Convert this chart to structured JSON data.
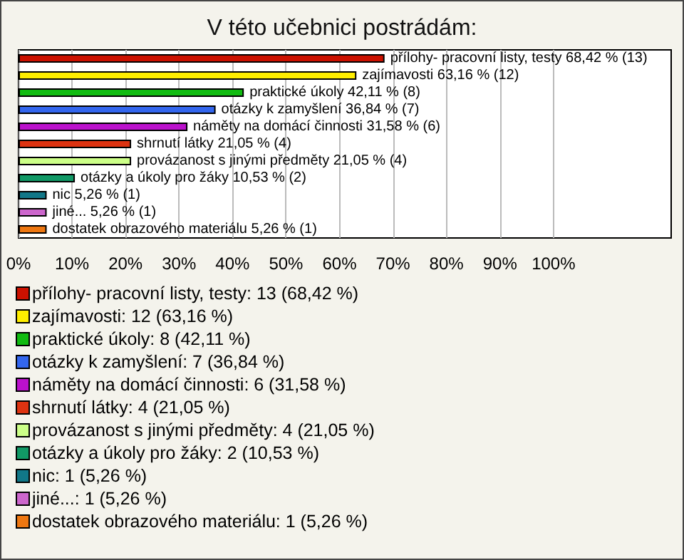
{
  "chart_data": {
    "type": "bar",
    "orientation": "horizontal",
    "stacked": true,
    "title": "V této učebnici postrádám:",
    "categories": [
      null,
      null,
      null,
      null,
      null,
      null,
      null,
      null,
      null,
      null,
      null
    ],
    "series": [
      {
        "name": "přílohy- pracovní listy, testy: 13 (68,42 %)",
        "color": "#cc1100",
        "values": [
          68.42,
          null,
          null,
          null,
          null,
          null,
          null,
          null,
          null,
          null,
          null
        ],
        "value_labels": [
          "přílohy- pracovní listy, testy 68,42 % (13)",
          null,
          null,
          null,
          null,
          null,
          null,
          null,
          null,
          null,
          null
        ]
      },
      {
        "name": "zajímavosti: 12 (63,16 %)",
        "color": "#ffee00",
        "values": [
          null,
          63.16,
          null,
          null,
          null,
          null,
          null,
          null,
          null,
          null,
          null
        ],
        "value_labels": [
          null,
          "zajímavosti 63,16 % (12)",
          null,
          null,
          null,
          null,
          null,
          null,
          null,
          null,
          null
        ]
      },
      {
        "name": "praktické úkoly: 8 (42,11 %)",
        "color": "#11bb11",
        "values": [
          null,
          null,
          42.11,
          null,
          null,
          null,
          null,
          null,
          null,
          null,
          null
        ],
        "value_labels": [
          null,
          null,
          "praktické úkoly 42,11 % (8)",
          null,
          null,
          null,
          null,
          null,
          null,
          null,
          null
        ]
      },
      {
        "name": "otázky k zamyšlení: 7 (36,84 %)",
        "color": "#3366ee",
        "values": [
          null,
          null,
          null,
          36.84,
          null,
          null,
          null,
          null,
          null,
          null,
          null
        ],
        "value_labels": [
          null,
          null,
          null,
          "otázky k zamyšlení 36,84 % (7)",
          null,
          null,
          null,
          null,
          null,
          null,
          null
        ]
      },
      {
        "name": "náměty na domácí činnosti: 6 (31,58 %)",
        "color": "#bb11cc",
        "values": [
          null,
          null,
          null,
          null,
          31.58,
          null,
          null,
          null,
          null,
          null,
          null
        ],
        "value_labels": [
          null,
          null,
          null,
          null,
          "náměty na domácí činnosti 31,58 % (6)",
          null,
          null,
          null,
          null,
          null,
          null
        ]
      },
      {
        "name": "shrnutí látky: 4 (21,05 %)",
        "color": "#dd3311",
        "values": [
          null,
          null,
          null,
          null,
          null,
          21.05,
          null,
          null,
          null,
          null,
          null
        ],
        "value_labels": [
          null,
          null,
          null,
          null,
          null,
          "shrnutí látky 21,05 % (4)",
          null,
          null,
          null,
          null,
          null
        ]
      },
      {
        "name": "provázanost s jinými předměty: 4 (21,05 %)",
        "color": "#ccff88",
        "values": [
          null,
          null,
          null,
          null,
          null,
          null,
          21.05,
          null,
          null,
          null,
          null
        ],
        "value_labels": [
          null,
          null,
          null,
          null,
          null,
          null,
          "provázanost s jinými předměty 21,05 % (4)",
          null,
          null,
          null,
          null
        ]
      },
      {
        "name": "otázky a úkoly pro žáky: 2 (10,53 %)",
        "color": "#119966",
        "values": [
          null,
          null,
          null,
          null,
          null,
          null,
          null,
          10.53,
          null,
          null,
          null
        ],
        "value_labels": [
          null,
          null,
          null,
          null,
          null,
          null,
          null,
          "otázky a úkoly pro žáky 10,53 % (2)",
          null,
          null,
          null
        ]
      },
      {
        "name": "nic: 1 (5,26 %)",
        "color": "#117788",
        "values": [
          null,
          null,
          null,
          null,
          null,
          null,
          null,
          null,
          5.26,
          null,
          null
        ],
        "value_labels": [
          null,
          null,
          null,
          null,
          null,
          null,
          null,
          null,
          "nic 5,26 % (1)",
          null,
          null
        ]
      },
      {
        "name": "jiné...: 1 (5,26 %)",
        "color": "#cc66cc",
        "values": [
          null,
          null,
          null,
          null,
          null,
          null,
          null,
          null,
          null,
          5.26,
          null
        ],
        "value_labels": [
          null,
          null,
          null,
          null,
          null,
          null,
          null,
          null,
          null,
          "jiné... 5,26 % (1)",
          null
        ]
      },
      {
        "name": "dostatek obrazového materiálu: 1 (5,26 %)",
        "color": "#ee7711",
        "values": [
          null,
          null,
          null,
          null,
          null,
          null,
          null,
          null,
          null,
          null,
          5.26
        ],
        "value_labels": [
          null,
          null,
          null,
          null,
          null,
          null,
          null,
          null,
          null,
          null,
          "dostatek obrazového materiálu 5,26 % (1)"
        ]
      }
    ],
    "xlim": [
      0,
      122
    ],
    "xticks": [
      {
        "value": 0,
        "label": "0%"
      },
      {
        "value": 10,
        "label": "10%"
      },
      {
        "value": 20,
        "label": "20%"
      },
      {
        "value": 30,
        "label": "30%"
      },
      {
        "value": 40,
        "label": "40%"
      },
      {
        "value": 50,
        "label": "50%"
      },
      {
        "value": 60,
        "label": "60%"
      },
      {
        "value": 70,
        "label": "70%"
      },
      {
        "value": 80,
        "label": "80%"
      },
      {
        "value": 90,
        "label": "90%"
      },
      {
        "value": 100,
        "label": "100%"
      }
    ],
    "grid": "x",
    "legend": "bottom",
    "tick_labels": "x"
  }
}
